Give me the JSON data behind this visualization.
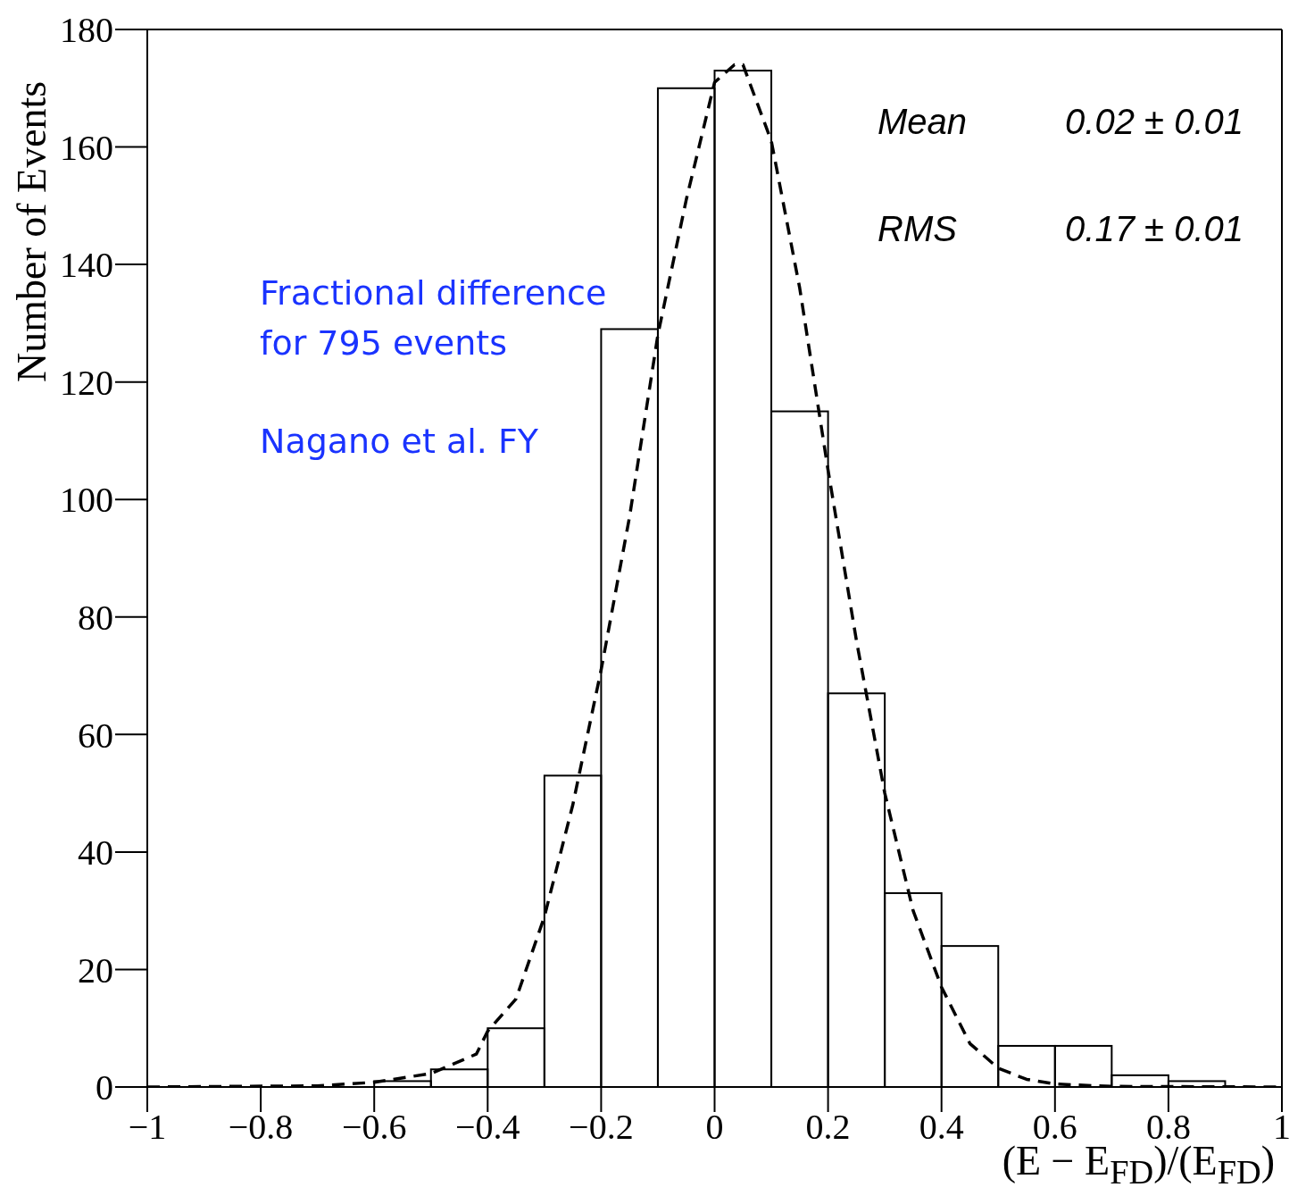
{
  "chart_data": {
    "type": "histogram",
    "xlabel": "(E − E$_{FD}$)/(E$_{FD}$)",
    "ylabel": "Number of Events",
    "bins": [
      -1,
      -0.9,
      -0.8,
      -0.7,
      -0.6,
      -0.5,
      -0.4,
      -0.3,
      -0.2,
      -0.1,
      0,
      0.1,
      0.2,
      0.3,
      0.4,
      0.5,
      0.6,
      0.7,
      0.8,
      0.9,
      1
    ],
    "values": [
      0,
      0,
      0,
      0,
      1,
      3,
      10,
      53,
      129,
      170,
      173,
      115,
      67,
      33,
      24,
      7,
      7,
      2,
      1,
      0
    ],
    "color": "#000000",
    "series": [
      {
        "type": "line",
        "color": "#000000",
        "line_style": "dashed",
        "x": [
          -1,
          -0.7,
          -0.6,
          -0.5,
          -0.42,
          -0.4,
          -0.35,
          -0.3,
          -0.25,
          -0.2,
          -0.15,
          -0.1,
          -0.05,
          0,
          0.035,
          0.05,
          0.1,
          0.15,
          0.2,
          0.25,
          0.3,
          0.35,
          0.4,
          0.45,
          0.5,
          0.55,
          0.6,
          0.7,
          1
        ],
        "values": [
          0,
          0.2,
          0.8,
          2.3,
          5.6,
          9.5,
          15,
          29,
          48,
          71,
          97,
          128,
          151,
          171,
          174,
          174,
          161,
          136,
          105,
          76,
          50,
          30,
          17,
          7.4,
          3.2,
          1.3,
          0.5,
          0.1,
          0
        ]
      }
    ],
    "xlim": [
      -1,
      1
    ],
    "ylim": [
      0,
      180
    ],
    "xticks": [
      {
        "value": -1,
        "label": "−1"
      },
      {
        "value": -0.8,
        "label": "−0.8"
      },
      {
        "value": -0.6,
        "label": "−0.6"
      },
      {
        "value": -0.4,
        "label": "−0.4"
      },
      {
        "value": -0.2,
        "label": "−0.2"
      },
      0,
      0.2,
      0.4,
      0.6,
      0.8,
      1
    ],
    "yticks": [
      0,
      20,
      40,
      60,
      80,
      100,
      120,
      140,
      160,
      180
    ],
    "annotations": [
      "Mean 0.02 ± 0.01",
      "RMS 0.17 ± 0.01",
      "Fractional difference for 795 events",
      "Nagano et al. FY"
    ]
  }
}
